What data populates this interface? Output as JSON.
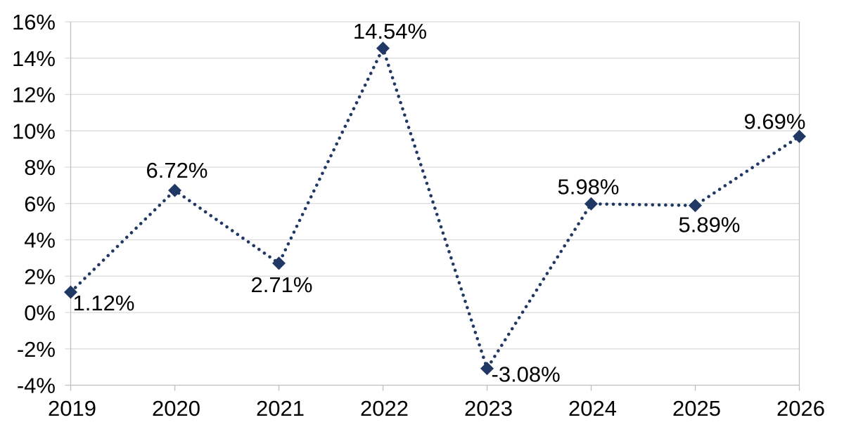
{
  "chart_data": {
    "type": "line",
    "title": "",
    "xlabel": "",
    "ylabel": "",
    "categories": [
      "2019",
      "2020",
      "2021",
      "2022",
      "2023",
      "2024",
      "2025",
      "2026"
    ],
    "values": [
      1.12,
      6.72,
      2.71,
      14.54,
      -3.08,
      5.98,
      5.89,
      9.69
    ],
    "point_labels": [
      "1.12%",
      "6.72%",
      "2.71%",
      "14.54%",
      "-3.08%",
      "5.98%",
      "5.89%",
      "9.69%"
    ],
    "label_positions": [
      "below-right",
      "above",
      "below",
      "above",
      "right",
      "above",
      "below",
      "above-left"
    ],
    "y_tick_labels": [
      "16%",
      "14%",
      "12%",
      "10%",
      "8%",
      "6%",
      "4%",
      "2%",
      "0%",
      "-2%",
      "-4%"
    ],
    "ylim": [
      -4,
      16
    ],
    "y_tick_step": 2,
    "grid": true,
    "legend": "none",
    "line_style": "dotted",
    "marker_style": "diamond",
    "colors": {
      "series": "#203864",
      "gridline": "#D9D9D9",
      "axis": "#BFBFBF",
      "text": "#000000",
      "background": "#FFFFFF"
    }
  }
}
